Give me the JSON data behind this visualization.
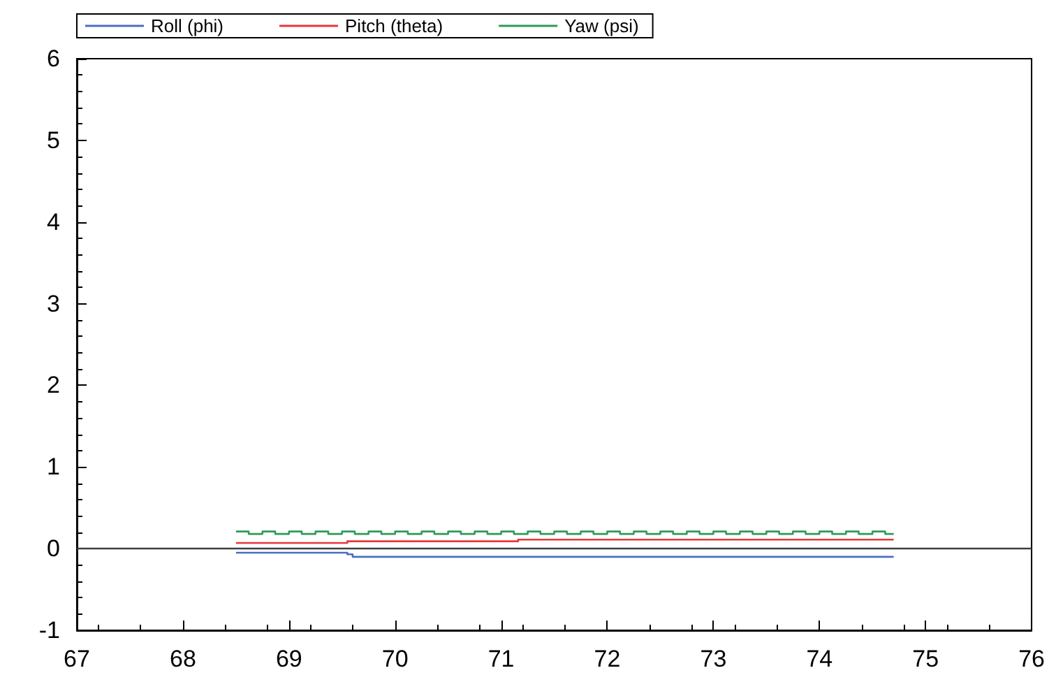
{
  "chart_data": {
    "type": "step",
    "xlim": [
      67,
      76
    ],
    "xticks": [
      67,
      68,
      69,
      70,
      71,
      72,
      73,
      74,
      75,
      76
    ],
    "ylim": [
      -1,
      6
    ],
    "yticks": [
      -1,
      0,
      1,
      2,
      3,
      4,
      5,
      6
    ],
    "grid": false,
    "legend": "top left",
    "marker": "none",
    "line_style": "solid",
    "ref_lines": [
      {
        "axis": "y",
        "value": 0,
        "color": "#404040"
      }
    ],
    "series": [
      {
        "name": "Roll (phi)",
        "color": "#4a6fc0",
        "x": [
          68.5,
          69.55,
          69.6,
          74.7
        ],
        "values": [
          -0.05,
          -0.07,
          -0.1,
          -0.1
        ]
      },
      {
        "name": "Pitch (theta)",
        "color": "#e8383c",
        "x": [
          68.5,
          69.55,
          71.16,
          74.7
        ],
        "values": [
          0.07,
          0.09,
          0.11,
          0.11
        ]
      },
      {
        "name": "Yaw (psi)",
        "color": "#2e9a5a",
        "x": [
          68.5,
          68.62,
          68.75,
          68.87,
          69,
          69.12,
          69.25,
          69.37,
          69.5,
          69.62,
          69.75,
          69.87,
          70,
          70.12,
          70.25,
          70.37,
          70.5,
          70.62,
          70.75,
          70.87,
          71,
          71.12,
          71.25,
          71.37,
          71.5,
          71.62,
          71.75,
          71.87,
          72,
          72.12,
          72.25,
          72.37,
          72.5,
          72.62,
          72.75,
          72.87,
          73,
          73.12,
          73.25,
          73.37,
          73.5,
          73.62,
          73.75,
          73.87,
          74,
          74.12,
          74.25,
          74.37,
          74.5,
          74.62,
          74.7
        ],
        "values": [
          0.21,
          0.18,
          0.21,
          0.18,
          0.21,
          0.18,
          0.21,
          0.18,
          0.21,
          0.18,
          0.21,
          0.18,
          0.21,
          0.18,
          0.21,
          0.18,
          0.21,
          0.18,
          0.21,
          0.18,
          0.21,
          0.18,
          0.21,
          0.18,
          0.21,
          0.18,
          0.21,
          0.18,
          0.21,
          0.18,
          0.21,
          0.18,
          0.21,
          0.18,
          0.21,
          0.18,
          0.21,
          0.18,
          0.21,
          0.18,
          0.21,
          0.18,
          0.21,
          0.18,
          0.21,
          0.18,
          0.21,
          0.18,
          0.21,
          0.18,
          0.18
        ]
      }
    ]
  }
}
